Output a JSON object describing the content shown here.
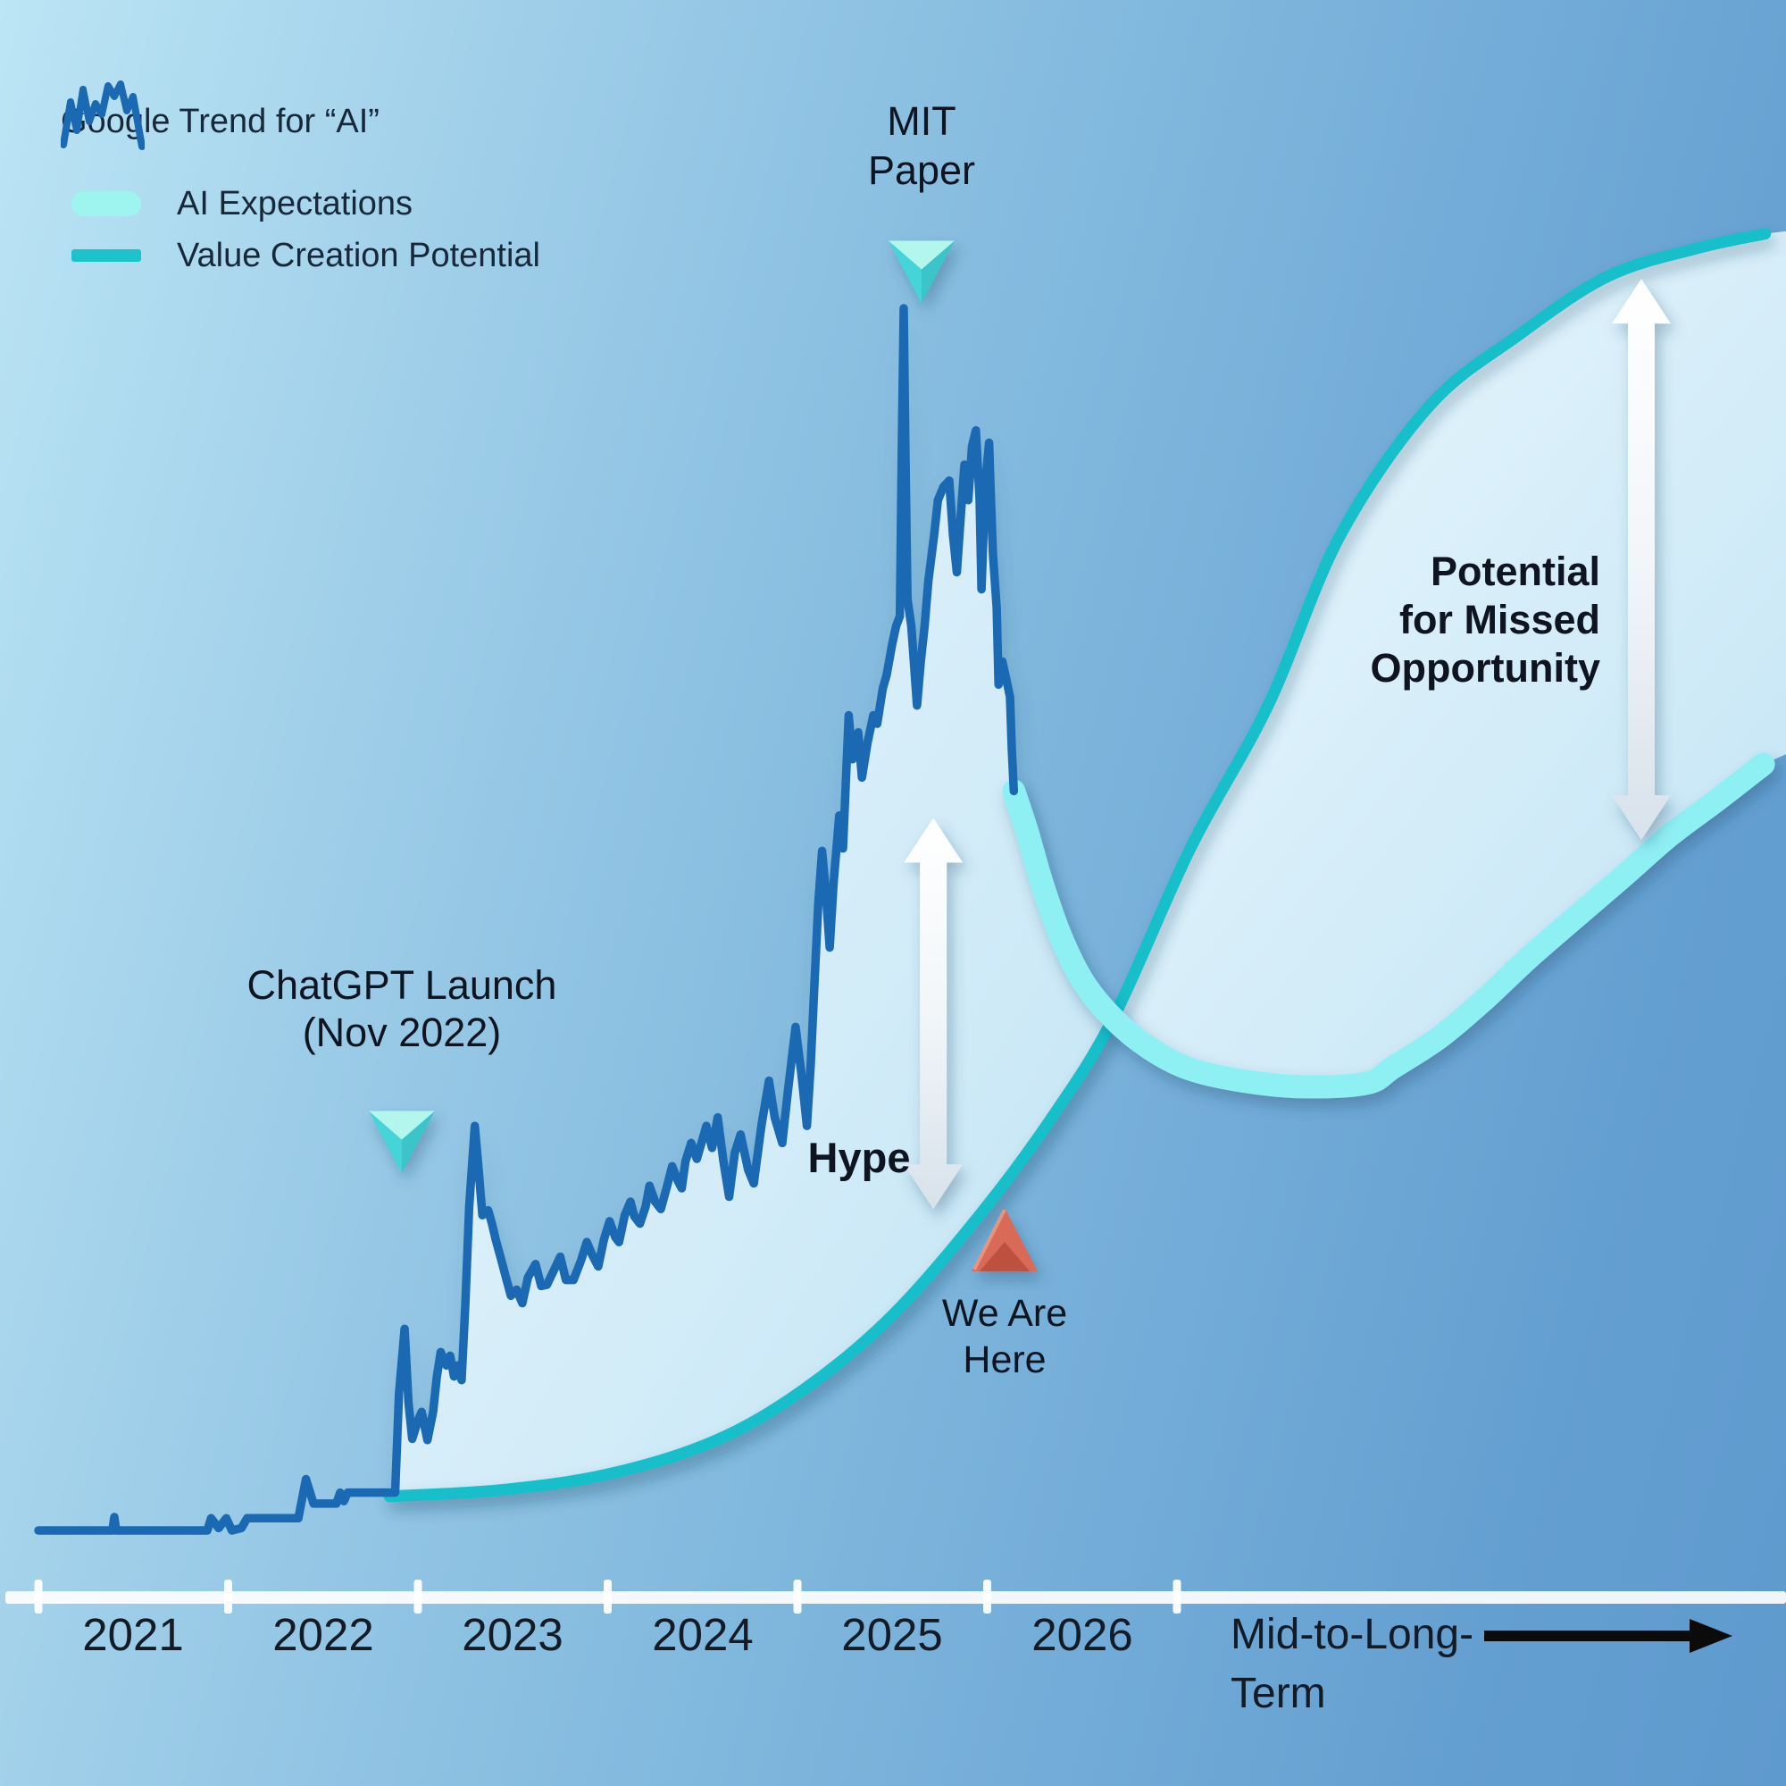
{
  "colors": {
    "background_left": "#bce5f5",
    "background_right": "#5f9ace",
    "trend_line": "#1b69b2",
    "expectations_band": "#8ff0f4",
    "expectations_swatch": "#9ef4ee",
    "value_line": "#19bfca",
    "gap_fill_light": "#ecf8fd",
    "gap_fill_dark": "#c2e4f5",
    "axis_white": "#ffffff",
    "text_dark": "#0e1520",
    "marker_cyan": "#45d5d8",
    "marker_red": "#d96b58",
    "white_arrow_top": "#ffffff",
    "white_arrow_bottom": "#d8e2eb",
    "black_arrow": "#0b0b0b"
  },
  "icons": {
    "legend_trend_icon": "zigzag-line-icon",
    "expectations_swatch_icon": "rounded-band-swatch",
    "value_swatch_icon": "line-swatch",
    "chatgpt_marker": "down-triangle-3d-cyan",
    "mit_marker": "down-triangle-3d-cyan",
    "wearehere_marker": "up-triangle-3d-red",
    "hype_arrow": "vertical-double-arrow-white",
    "missed_arrow": "vertical-double-arrow-white",
    "time_arrow": "right-arrow-black"
  },
  "legend": {
    "items": [
      {
        "label": "Google Trend for “AI”",
        "swatch": "zigzag-line"
      },
      {
        "label": "AI Expectations",
        "swatch": "cyan-band"
      },
      {
        "label": "Value Creation Potential",
        "swatch": "teal-line"
      }
    ]
  },
  "chart_data": {
    "type": "line",
    "x_labels": [
      "2021",
      "2022",
      "2023",
      "2024",
      "2025",
      "2026"
    ],
    "x_extra_label_lines": [
      "Mid-to-Long-",
      "Term"
    ],
    "xlabel": "",
    "ylabel": "",
    "ylim": [
      0,
      107
    ],
    "grid": false,
    "legend_position": "top-left",
    "series": [
      {
        "name": "Google Trend for “AI”",
        "type": "line",
        "color": "#1b69b2",
        "points": [
          [
            2021.0,
            0
          ],
          [
            2021.39,
            0
          ],
          [
            2021.4,
            1.1
          ],
          [
            2021.41,
            0
          ],
          [
            2021.89,
            0
          ],
          [
            2021.91,
            1.0
          ],
          [
            2021.95,
            0.2
          ],
          [
            2021.99,
            1.0
          ],
          [
            2022.02,
            0
          ],
          [
            2022.07,
            0.2
          ],
          [
            2022.1,
            1.0
          ],
          [
            2022.37,
            1.0
          ],
          [
            2022.41,
            4.2
          ],
          [
            2022.45,
            2.2
          ],
          [
            2022.57,
            2.2
          ],
          [
            2022.59,
            3.1
          ],
          [
            2022.61,
            2.4
          ],
          [
            2022.63,
            3.1
          ],
          [
            2022.88,
            3.1
          ],
          [
            2022.9,
            11.2
          ],
          [
            2022.93,
            16.5
          ],
          [
            2022.95,
            10.5
          ],
          [
            2022.97,
            7.5
          ],
          [
            2023.0,
            9.0
          ],
          [
            2023.02,
            9.7
          ],
          [
            2023.05,
            7.4
          ],
          [
            2023.08,
            9.7
          ],
          [
            2023.1,
            12.6
          ],
          [
            2023.12,
            14.6
          ],
          [
            2023.15,
            13.5
          ],
          [
            2023.17,
            14.3
          ],
          [
            2023.19,
            12.6
          ],
          [
            2023.21,
            13.5
          ],
          [
            2023.23,
            12.3
          ],
          [
            2023.25,
            18.5
          ],
          [
            2023.27,
            26.5
          ],
          [
            2023.3,
            33.1
          ],
          [
            2023.32,
            29.5
          ],
          [
            2023.34,
            25.8
          ],
          [
            2023.37,
            26.2
          ],
          [
            2023.39,
            25.1
          ],
          [
            2023.41,
            23.8
          ],
          [
            2023.44,
            22.1
          ],
          [
            2023.46,
            20.9
          ],
          [
            2023.49,
            19.2
          ],
          [
            2023.52,
            19.7
          ],
          [
            2023.55,
            18.6
          ],
          [
            2023.58,
            20.7
          ],
          [
            2023.62,
            21.8
          ],
          [
            2023.65,
            20.0
          ],
          [
            2023.68,
            20.1
          ],
          [
            2023.72,
            21.4
          ],
          [
            2023.75,
            22.4
          ],
          [
            2023.78,
            20.5
          ],
          [
            2023.82,
            20.5
          ],
          [
            2023.86,
            22.1
          ],
          [
            2023.89,
            23.6
          ],
          [
            2023.92,
            22.5
          ],
          [
            2023.95,
            21.6
          ],
          [
            2023.98,
            23.8
          ],
          [
            2024.01,
            25.3
          ],
          [
            2024.04,
            24.0
          ],
          [
            2024.06,
            23.6
          ],
          [
            2024.09,
            25.8
          ],
          [
            2024.12,
            26.9
          ],
          [
            2024.14,
            25.7
          ],
          [
            2024.17,
            25.1
          ],
          [
            2024.2,
            26.5
          ],
          [
            2024.22,
            28.2
          ],
          [
            2024.25,
            26.9
          ],
          [
            2024.28,
            26.3
          ],
          [
            2024.31,
            28.0
          ],
          [
            2024.34,
            29.8
          ],
          [
            2024.37,
            28.6
          ],
          [
            2024.39,
            28.0
          ],
          [
            2024.41,
            30.2
          ],
          [
            2024.44,
            31.7
          ],
          [
            2024.46,
            30.8
          ],
          [
            2024.47,
            30.4
          ],
          [
            2024.52,
            33.1
          ],
          [
            2024.55,
            31.3
          ],
          [
            2024.58,
            33.8
          ],
          [
            2024.61,
            30.2
          ],
          [
            2024.64,
            27.3
          ],
          [
            2024.67,
            30.9
          ],
          [
            2024.7,
            32.4
          ],
          [
            2024.74,
            29.5
          ],
          [
            2024.77,
            28.4
          ],
          [
            2024.81,
            33.1
          ],
          [
            2024.85,
            36.8
          ],
          [
            2024.88,
            33.8
          ],
          [
            2024.92,
            31.7
          ],
          [
            2024.95,
            36.0
          ],
          [
            2024.99,
            41.2
          ],
          [
            2025.02,
            37.5
          ],
          [
            2025.05,
            33.1
          ],
          [
            2025.07,
            38.2
          ],
          [
            2025.09,
            44.8
          ],
          [
            2025.11,
            51.4
          ],
          [
            2025.13,
            55.6
          ],
          [
            2025.15,
            52.1
          ],
          [
            2025.17,
            47.7
          ],
          [
            2025.19,
            52.9
          ],
          [
            2025.22,
            58.5
          ],
          [
            2025.24,
            55.8
          ],
          [
            2025.27,
            66.7
          ],
          [
            2025.29,
            63.1
          ],
          [
            2025.32,
            65.3
          ],
          [
            2025.34,
            61.6
          ],
          [
            2025.37,
            64.5
          ],
          [
            2025.4,
            66.7
          ],
          [
            2025.42,
            66.0
          ],
          [
            2025.45,
            68.9
          ],
          [
            2025.47,
            70.0
          ],
          [
            2025.5,
            72.6
          ],
          [
            2025.52,
            74.0
          ],
          [
            2025.54,
            74.8
          ],
          [
            2025.55,
            88.7
          ],
          [
            2025.56,
            100
          ],
          [
            2025.57,
            87.2
          ],
          [
            2025.58,
            76.2
          ],
          [
            2025.6,
            74.0
          ],
          [
            2025.62,
            69.7
          ],
          [
            2025.63,
            67.5
          ],
          [
            2025.65,
            71.1
          ],
          [
            2025.67,
            74.0
          ],
          [
            2025.69,
            77.7
          ],
          [
            2025.72,
            81.4
          ],
          [
            2025.74,
            84.3
          ],
          [
            2025.77,
            85.4
          ],
          [
            2025.8,
            85.9
          ],
          [
            2025.82,
            81.4
          ],
          [
            2025.84,
            78.4
          ],
          [
            2025.86,
            82.8
          ],
          [
            2025.88,
            87.2
          ],
          [
            2025.9,
            84.3
          ],
          [
            2025.92,
            88.7
          ],
          [
            2025.94,
            90.0
          ],
          [
            2025.96,
            84.3
          ],
          [
            2025.97,
            77.0
          ],
          [
            2025.99,
            85.7
          ],
          [
            2026.01,
            89.0
          ],
          [
            2026.02,
            84.3
          ],
          [
            2026.03,
            79.9
          ],
          [
            2026.05,
            75.5
          ],
          [
            2026.06,
            69.2
          ],
          [
            2026.08,
            71.1
          ],
          [
            2026.1,
            69.7
          ],
          [
            2026.12,
            68.2
          ],
          [
            2026.13,
            63.8
          ],
          [
            2026.14,
            60.5
          ]
        ]
      },
      {
        "name": "AI Expectations",
        "type": "line",
        "color": "#8ff0f4",
        "points": [
          [
            2026.14,
            60.5
          ],
          [
            2026.21,
            57.2
          ],
          [
            2026.29,
            52.9
          ],
          [
            2026.39,
            48.5
          ],
          [
            2026.51,
            44.8
          ],
          [
            2026.67,
            41.8
          ],
          [
            2026.85,
            39.5
          ],
          [
            2027.06,
            37.8
          ],
          [
            2027.34,
            36.8
          ],
          [
            2027.67,
            36.3
          ],
          [
            2028.0,
            36.6
          ],
          [
            2028.14,
            37.9
          ],
          [
            2028.38,
            40.3
          ],
          [
            2028.61,
            43.3
          ],
          [
            2028.85,
            46.8
          ],
          [
            2029.08,
            49.9
          ],
          [
            2029.35,
            53.5
          ],
          [
            2029.6,
            56.9
          ],
          [
            2029.85,
            59.8
          ],
          [
            2030.09,
            62.7
          ]
        ]
      },
      {
        "name": "Value Creation Potential",
        "type": "line",
        "color": "#19bfca",
        "points": [
          [
            2022.85,
            2.8
          ],
          [
            2023.43,
            3.3
          ],
          [
            2024.0,
            4.6
          ],
          [
            2024.56,
            7.3
          ],
          [
            2025.03,
            11.5
          ],
          [
            2025.5,
            17.6
          ],
          [
            2025.97,
            26.0
          ],
          [
            2026.35,
            34.0
          ],
          [
            2026.67,
            42.1
          ],
          [
            2027.07,
            55.8
          ],
          [
            2027.48,
            67.5
          ],
          [
            2027.86,
            81.4
          ],
          [
            2028.33,
            92.0
          ],
          [
            2028.8,
            97.8
          ],
          [
            2029.27,
            102.6
          ],
          [
            2029.74,
            104.9
          ],
          [
            2030.1,
            106.1
          ]
        ]
      }
    ],
    "markers": [
      {
        "id": "chatgpt",
        "label_lines": [
          "ChatGPT Launch",
          "(Nov 2022)"
        ],
        "year": 2022.915,
        "tip_value": 29.2,
        "direction": "down",
        "color": "#45d5d8"
      },
      {
        "id": "mit",
        "label_lines": [
          "MIT",
          "Paper"
        ],
        "year": 2025.654,
        "tip_value": 100.4,
        "direction": "down",
        "color": "#45d5d8"
      },
      {
        "id": "wearehere",
        "label_lines": [
          "We Are",
          "Here"
        ],
        "year": 2026.092,
        "tip_value": 26.4,
        "direction": "up",
        "color": "#d96b58"
      }
    ],
    "annotations": [
      {
        "id": "hype",
        "text": "Hype",
        "bold": true,
        "year": 2025.716,
        "value_from": 26.3,
        "value_to": 58.3
      },
      {
        "id": "missed",
        "text_lines": [
          "Potential",
          "for Missed",
          "Opportunity"
        ],
        "bold": true,
        "year": 2029.447,
        "value_from": 56.5,
        "value_to": 102.4
      }
    ]
  }
}
